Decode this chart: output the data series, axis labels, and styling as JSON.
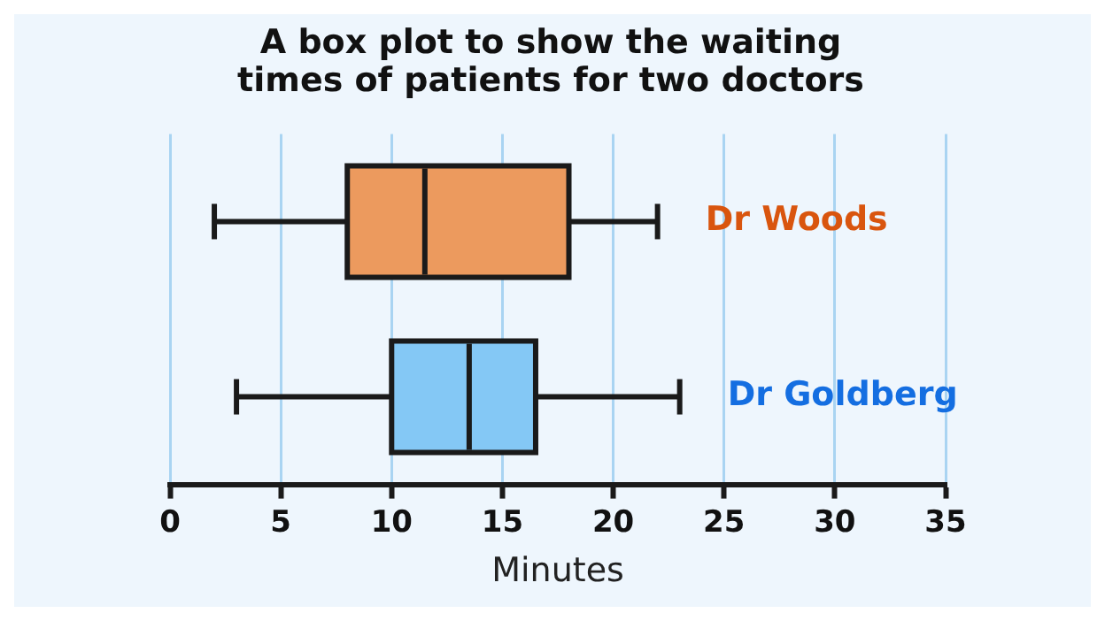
{
  "chart_data": {
    "type": "box",
    "orientation": "horizontal",
    "title": "A box plot to show the waiting times of patients for two doctors",
    "xlabel": "Minutes",
    "categories": [
      "Dr Woods",
      "Dr Goldberg"
    ],
    "colors": [
      "#ec9a5e",
      "#84c8f5"
    ],
    "boxes": [
      {
        "low": 2,
        "q1": 8,
        "median": 11.5,
        "q3": 18,
        "high": 22
      },
      {
        "low": 3,
        "q1": 10,
        "median": 13.5,
        "q3": 16.5,
        "high": 23
      }
    ],
    "xlim": [
      0,
      35
    ],
    "xticks": [
      0,
      5,
      10,
      15,
      20,
      25,
      30,
      35
    ],
    "grid": "x",
    "legend": false
  }
}
